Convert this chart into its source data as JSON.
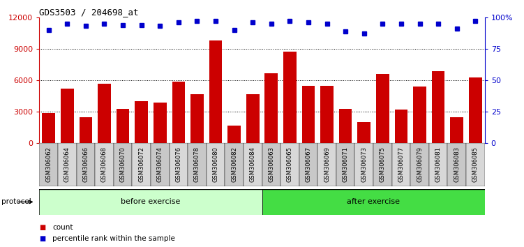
{
  "title": "GDS3503 / 204698_at",
  "categories": [
    "GSM306062",
    "GSM306064",
    "GSM306066",
    "GSM306068",
    "GSM306070",
    "GSM306072",
    "GSM306074",
    "GSM306076",
    "GSM306078",
    "GSM306080",
    "GSM306082",
    "GSM306084",
    "GSM306063",
    "GSM306065",
    "GSM306067",
    "GSM306069",
    "GSM306071",
    "GSM306073",
    "GSM306075",
    "GSM306077",
    "GSM306079",
    "GSM306081",
    "GSM306083",
    "GSM306085"
  ],
  "counts": [
    2900,
    5200,
    2500,
    5700,
    3300,
    4000,
    3900,
    5900,
    4700,
    9800,
    1700,
    4700,
    6700,
    8700,
    5500,
    5500,
    3300,
    2000,
    6600,
    3200,
    5400,
    6900,
    2500,
    6300
  ],
  "percentile_ranks": [
    90,
    95,
    93,
    95,
    94,
    94,
    93,
    96,
    97,
    97,
    90,
    96,
    95,
    97,
    96,
    95,
    89,
    87,
    95,
    95,
    95,
    95,
    91,
    97
  ],
  "before_count": 12,
  "bar_color": "#cc0000",
  "dot_color": "#0000cc",
  "ylim_left": [
    0,
    12000
  ],
  "ylim_right": [
    0,
    100
  ],
  "yticks_left": [
    0,
    3000,
    6000,
    9000,
    12000
  ],
  "yticks_right": [
    0,
    25,
    50,
    75,
    100
  ],
  "ytick_labels_right": [
    "0",
    "25",
    "50",
    "75",
    "100%"
  ],
  "before_color": "#ccffcc",
  "after_color": "#44dd44",
  "protocol_label": "protocol",
  "before_label": "before exercise",
  "after_label": "after exercise",
  "legend_count": "count",
  "legend_pct": "percentile rank within the sample",
  "col_color_even": "#c8c8c8",
  "col_color_odd": "#d8d8d8"
}
